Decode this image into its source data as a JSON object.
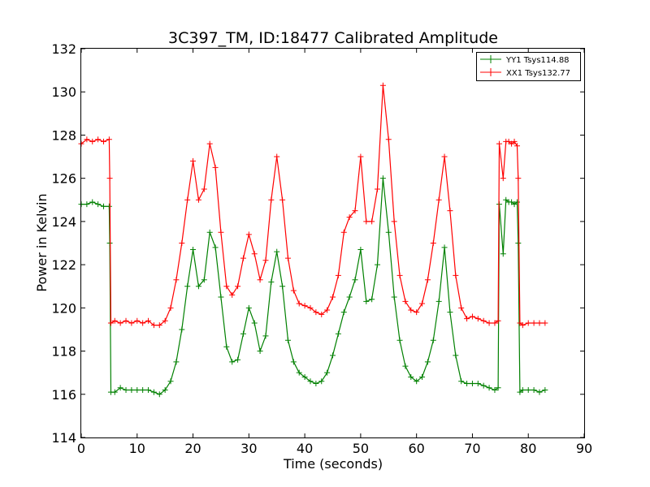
{
  "colors": {
    "series_yy": "#008000",
    "series_xx": "#ff0000",
    "axes": "#000000",
    "background": "#ffffff"
  },
  "chart_data": {
    "type": "line",
    "title": "3C397_TM, ID:18477 Calibrated Amplitude",
    "xlabel": "Time (seconds)",
    "ylabel": "Power in Kelvin",
    "xlim": [
      0,
      90
    ],
    "ylim": [
      114,
      132
    ],
    "xticks": [
      0,
      10,
      20,
      30,
      40,
      50,
      60,
      70,
      80,
      90
    ],
    "yticks": [
      114,
      116,
      118,
      120,
      122,
      124,
      126,
      128,
      130,
      132
    ],
    "grid": false,
    "legend": "top-right",
    "marker": "plus",
    "series": [
      {
        "name": "YY1 Tsys114.88",
        "color": "#008000",
        "x": [
          0,
          1,
          2,
          3,
          4,
          5,
          5.1,
          5.3,
          6,
          7,
          8,
          9,
          10,
          11,
          12,
          13,
          14,
          15,
          16,
          17,
          18,
          19,
          20,
          21,
          22,
          23,
          24,
          25,
          26,
          27,
          28,
          29,
          30,
          31,
          32,
          33,
          34,
          35,
          36,
          37,
          38,
          39,
          40,
          41,
          42,
          43,
          44,
          45,
          46,
          47,
          48,
          49,
          50,
          51,
          52,
          53,
          54,
          55,
          56,
          57,
          58,
          59,
          60,
          61,
          62,
          63,
          64,
          65,
          66,
          67,
          68,
          69,
          70,
          71,
          72,
          73,
          74,
          74.6,
          74.8,
          75.5,
          76,
          76.5,
          77,
          77.5,
          78,
          78.2,
          78.5,
          79,
          80,
          81,
          82,
          83
        ],
        "y": [
          124.8,
          124.8,
          124.9,
          124.8,
          124.7,
          124.7,
          123.0,
          116.1,
          116.1,
          116.3,
          116.2,
          116.2,
          116.2,
          116.2,
          116.2,
          116.1,
          116.0,
          116.2,
          116.6,
          117.5,
          119.0,
          121.0,
          122.7,
          121.0,
          121.3,
          123.5,
          122.8,
          120.5,
          118.2,
          117.5,
          117.6,
          118.8,
          120.0,
          119.3,
          118.0,
          118.7,
          121.2,
          122.6,
          121.0,
          118.5,
          117.5,
          117.0,
          116.8,
          116.6,
          116.5,
          116.6,
          117.0,
          117.8,
          118.8,
          119.8,
          120.5,
          121.3,
          122.7,
          120.3,
          120.4,
          122.0,
          126.0,
          123.5,
          120.5,
          118.5,
          117.3,
          116.8,
          116.6,
          116.8,
          117.5,
          118.5,
          120.3,
          122.8,
          119.8,
          117.8,
          116.6,
          116.5,
          116.5,
          116.5,
          116.4,
          116.3,
          116.2,
          116.3,
          124.8,
          122.5,
          125.0,
          124.9,
          124.9,
          124.8,
          124.9,
          123.0,
          116.1,
          116.2,
          116.2,
          116.2,
          116.1,
          116.2
        ]
      },
      {
        "name": "XX1 Tsys132.77",
        "color": "#ff0000",
        "x": [
          0,
          1,
          2,
          3,
          4,
          5,
          5.1,
          5.3,
          6,
          7,
          8,
          9,
          10,
          11,
          12,
          13,
          14,
          15,
          16,
          17,
          18,
          19,
          20,
          21,
          22,
          23,
          24,
          25,
          26,
          27,
          28,
          29,
          30,
          31,
          32,
          33,
          34,
          35,
          36,
          37,
          38,
          39,
          40,
          41,
          42,
          43,
          44,
          45,
          46,
          47,
          48,
          49,
          50,
          51,
          52,
          53,
          54,
          55,
          56,
          57,
          58,
          59,
          60,
          61,
          62,
          63,
          64,
          65,
          66,
          67,
          68,
          69,
          70,
          71,
          72,
          73,
          74,
          74.6,
          74.8,
          75.5,
          76,
          76.5,
          77,
          77.5,
          78,
          78.2,
          78.5,
          79,
          80,
          81,
          82,
          83
        ],
        "y": [
          127.6,
          127.8,
          127.7,
          127.8,
          127.7,
          127.8,
          126.0,
          119.3,
          119.4,
          119.3,
          119.4,
          119.3,
          119.4,
          119.3,
          119.4,
          119.2,
          119.2,
          119.4,
          120.0,
          121.3,
          123.0,
          125.0,
          126.8,
          125.0,
          125.5,
          127.6,
          126.5,
          123.5,
          121.0,
          120.6,
          121.0,
          122.3,
          123.4,
          122.5,
          121.3,
          122.2,
          125.0,
          127.0,
          125.0,
          122.3,
          120.8,
          120.2,
          120.1,
          120.0,
          119.8,
          119.7,
          119.9,
          120.5,
          121.5,
          123.5,
          124.2,
          124.5,
          127.0,
          124.0,
          124.0,
          125.5,
          130.3,
          127.8,
          124.0,
          121.5,
          120.3,
          119.9,
          119.8,
          120.2,
          121.3,
          123.0,
          125.0,
          127.0,
          124.5,
          121.5,
          120.0,
          119.5,
          119.6,
          119.5,
          119.4,
          119.3,
          119.3,
          119.4,
          127.6,
          126.0,
          127.7,
          127.7,
          127.6,
          127.7,
          127.5,
          126.0,
          119.3,
          119.2,
          119.3,
          119.3,
          119.3,
          119.3
        ]
      }
    ]
  }
}
